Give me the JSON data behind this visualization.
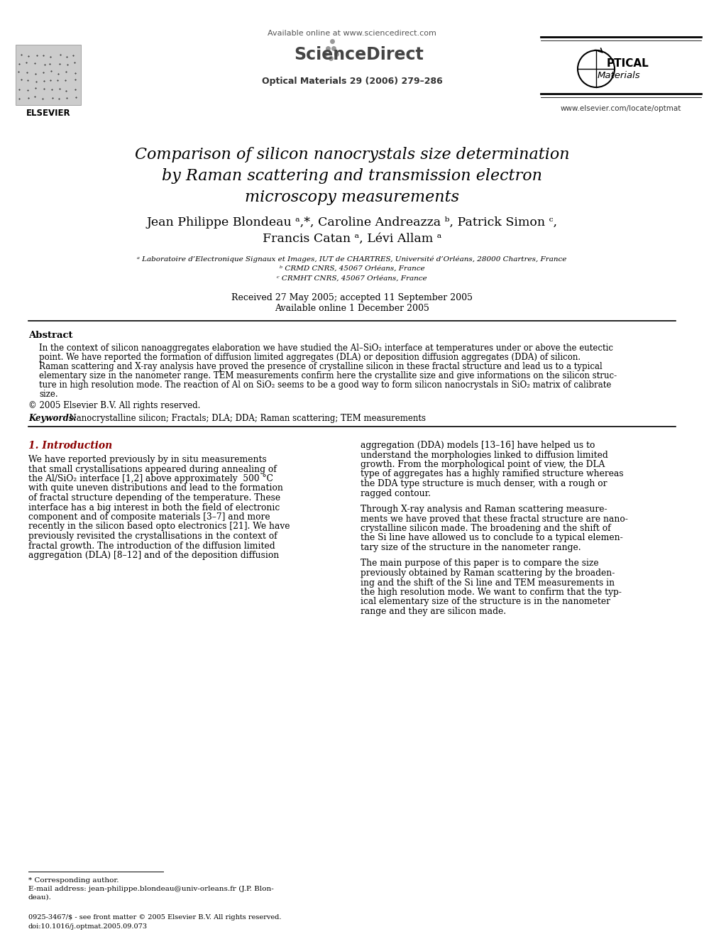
{
  "title_line1": "Comparison of silicon nanocrystals size determination",
  "title_line2": "by Raman scattering and transmission electron",
  "title_line3": "microscopy measurements",
  "authors_line1": "Jean Philippe Blondeau ᵃ,*, Caroline Andreazza ᵇ, Patrick Simon ᶜ,",
  "authors_line2": "Francis Catan ᵃ, Lévi Allam ᵃ",
  "affil_a": "ᵃ Laboratoire d’Electronique Signaux et Images, IUT de CHARTRES, Université d’Orléans, 28000 Chartres, France",
  "affil_b": "ᵇ CRMD CNRS, 45067 Orléans, France",
  "affil_c": "ᶜ CRMHT CNRS, 45067 Orléans, France",
  "received": "Received 27 May 2005; accepted 11 September 2005",
  "available": "Available online 1 December 2005",
  "journal_info": "Optical Materials 29 (2006) 279–286",
  "available_online": "Available online at www.sciencedirect.com",
  "elsevier_text": "ELSEVIER",
  "url": "www.elsevier.com/locate/optmat",
  "abstract_title": "Abstract",
  "abstract_lines": [
    "In the context of silicon nanoaggregates elaboration we have studied the Al–SiO₂ interface at temperatures under or above the eutectic",
    "point. We have reported the formation of diffusion limited aggregates (DLA) or deposition diffusion aggregates (DDA) of silicon.",
    "Raman scattering and X-ray analysis have proved the presence of crystalline silicon in these fractal structure and lead us to a typical",
    "elementary size in the nanometer range. TEM measurements confirm here the crystallite size and give informations on the silicon struc-",
    "ture in high resolution mode. The reaction of Al on SiO₂ seems to be a good way to form silicon nanocrystals in SiO₂ matrix of calibrate",
    "size."
  ],
  "copyright": "© 2005 Elsevier B.V. All rights reserved.",
  "keywords_label": "Keywords:",
  "keywords_text": "  Nanocrystalline silicon; Fractals; DLA; DDA; Raman scattering; TEM measurements",
  "section1_title": "1. Introduction",
  "col1_lines": [
    "We have reported previously by in situ measurements",
    "that small crystallisations appeared during annealing of",
    "the Al/SiO₂ interface [1,2] above approximately  500 °C",
    "with quite uneven distributions and lead to the formation",
    "of fractal structure depending of the temperature. These",
    "interface has a big interest in both the field of electronic",
    "component and of composite materials [3–7] and more",
    "recently in the silicon based opto electronics [21]. We have",
    "previously revisited the crystallisations in the context of",
    "fractal growth. The introduction of the diffusion limited",
    "aggregation (DLA) [8–12] and of the deposition diffusion"
  ],
  "col2_lines_p1": [
    "aggregation (DDA) models [13–16] have helped us to",
    "understand the morphologies linked to diffusion limited",
    "growth. From the morphological point of view, the DLA",
    "type of aggregates has a highly ramified structure whereas",
    "the DDA type structure is much denser, with a rough or",
    "ragged contour."
  ],
  "col2_lines_p2": [
    "Through X-ray analysis and Raman scattering measure-",
    "ments we have proved that these fractal structure are nano-",
    "crystalline silicon made. The broadening and the shift of",
    "the Si line have allowed us to conclude to a typical elemen-",
    "tary size of the structure in the nanometer range."
  ],
  "col2_lines_p3": [
    "The main purpose of this paper is to compare the size",
    "previously obtained by Raman scattering by the broaden-",
    "ing and the shift of the Si line and TEM measurements in",
    "the high resolution mode. We want to confirm that the typ-",
    "ical elementary size of the structure is in the nanometer",
    "range and they are silicon made."
  ],
  "footnote_label": "* Corresponding author.",
  "footnote_email1": "E-mail address: jean-philippe.blondeau@univ-orleans.fr (J.P. Blon-",
  "footnote_email2": "deau).",
  "footer1": "0925-3467/$ - see front matter © 2005 Elsevier B.V. All rights reserved.",
  "footer2": "doi:10.1016/j.optmat.2005.09.073",
  "section1_color": "#8B0000",
  "bg_color": "#ffffff",
  "text_color": "#000000"
}
